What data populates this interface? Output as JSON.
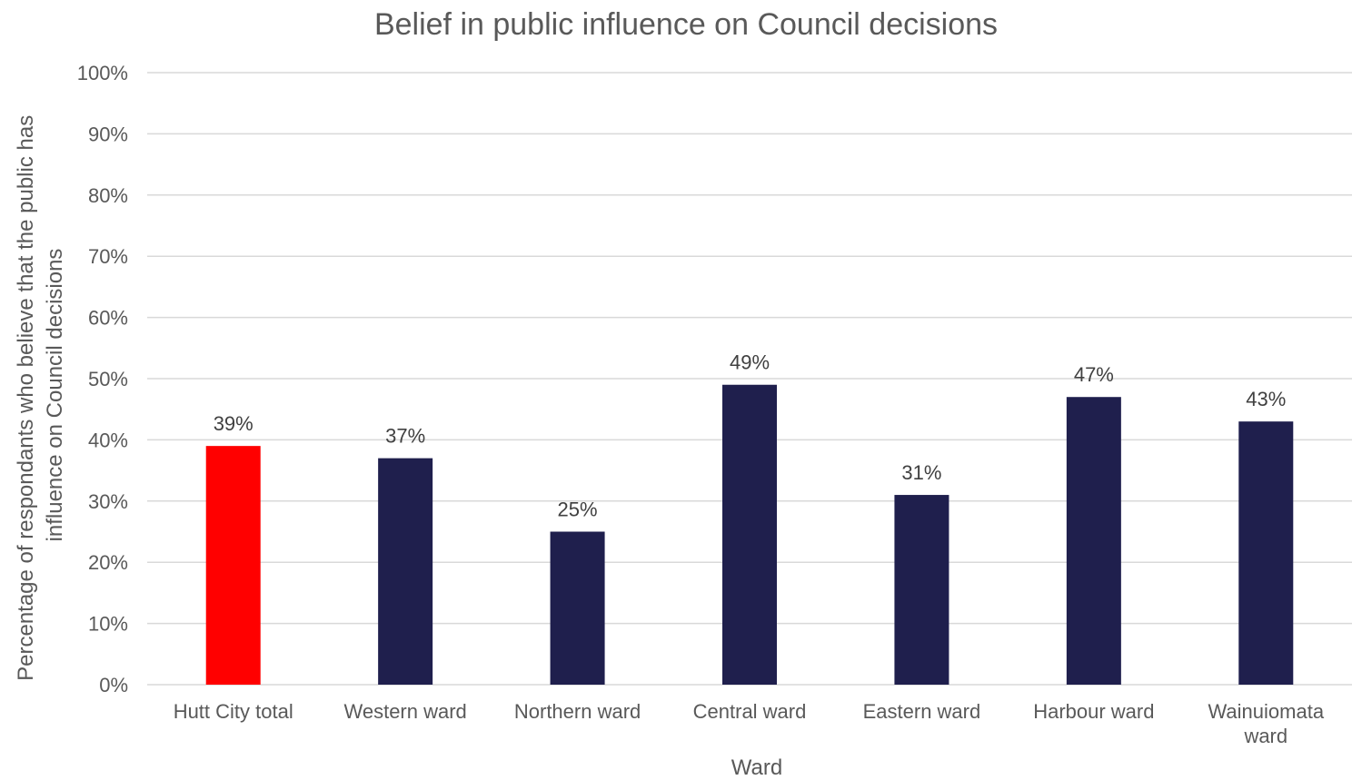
{
  "chart_data": {
    "type": "bar",
    "title": "Belief in public influence on Council decisions",
    "xlabel": "Ward",
    "ylabel_lines": [
      "Percentage of respondants who believe that the public has",
      "influence on Council decisions"
    ],
    "categories": [
      [
        "Hutt City total"
      ],
      [
        "Western ward"
      ],
      [
        "Northern ward"
      ],
      [
        "Central ward"
      ],
      [
        "Eastern ward"
      ],
      [
        "Harbour ward"
      ],
      [
        "Wainuiomata",
        "ward"
      ]
    ],
    "values": [
      39,
      37,
      25,
      49,
      31,
      47,
      43
    ],
    "data_labels": [
      "39%",
      "37%",
      "25%",
      "49%",
      "31%",
      "47%",
      "43%"
    ],
    "bar_colors": [
      "#ff0000",
      "#1f1f4d",
      "#1f1f4d",
      "#1f1f4d",
      "#1f1f4d",
      "#1f1f4d",
      "#1f1f4d"
    ],
    "ylim": [
      0,
      100
    ],
    "y_ticks": [
      "0%",
      "10%",
      "20%",
      "30%",
      "40%",
      "50%",
      "60%",
      "70%",
      "80%",
      "90%",
      "100%"
    ],
    "grid": true,
    "legend": "none"
  }
}
